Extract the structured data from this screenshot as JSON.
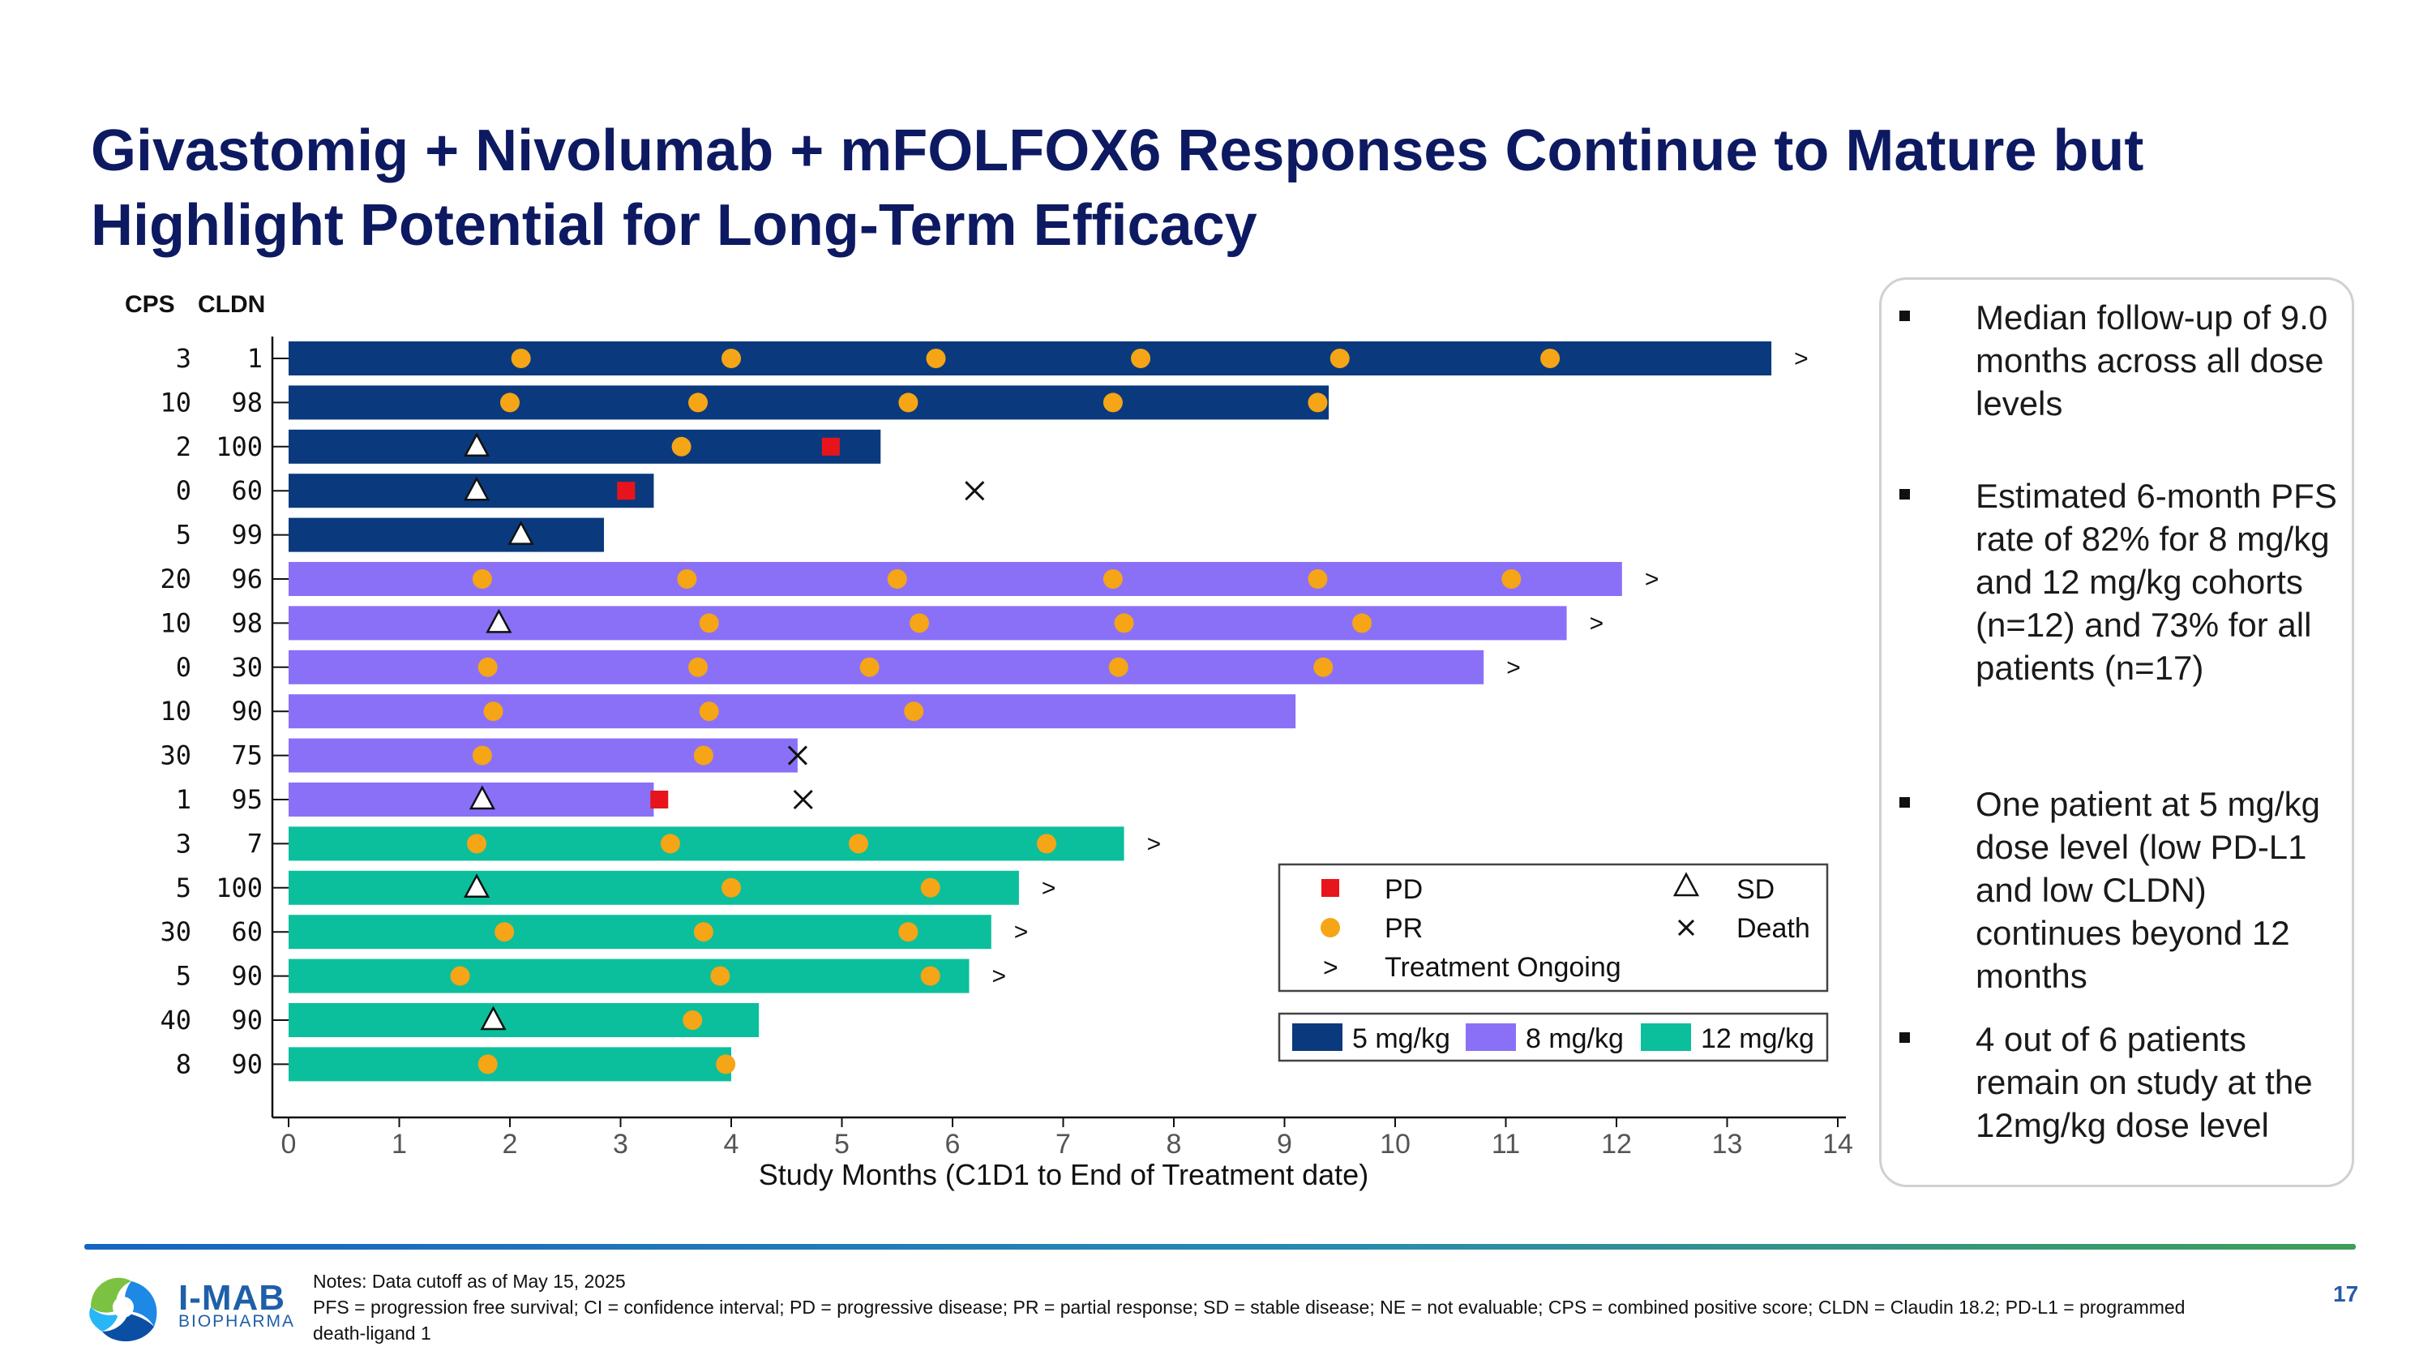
{
  "title": {
    "line1": "Givastomig + Nivolumab + mFOLFOX6 Responses Continue to Mature but",
    "line2": "Highlight Potential for Long-Term Efficacy"
  },
  "chart_data": {
    "type": "swimmer",
    "xlabel": "Study Months (C1D1 to End of Treatment date)",
    "xlim": [
      0,
      14
    ],
    "xticks": [
      0,
      1,
      2,
      3,
      4,
      5,
      6,
      7,
      8,
      9,
      10,
      11,
      12,
      13,
      14
    ],
    "column_headers": [
      "CPS",
      "CLDN"
    ],
    "colors": {
      "5 mg/kg": "#0a3a7d",
      "8 mg/kg": "#8a70f7",
      "12 mg/kg": "#0bbf9c",
      "PR": "#f5a516",
      "PD": "#e8141c",
      "marker": "#111111"
    },
    "legend_markers": [
      {
        "symbol": "■",
        "label": "PD"
      },
      {
        "symbol": "△",
        "label": "SD"
      },
      {
        "symbol": "●",
        "label": "PR"
      },
      {
        "symbol": "×",
        "label": "Death"
      },
      {
        "symbol": ">",
        "label": "Treatment Ongoing"
      }
    ],
    "legend_doses": [
      "5 mg/kg",
      "8 mg/kg",
      "12 mg/kg"
    ],
    "rows": [
      {
        "cps": "3",
        "cldn": "1",
        "dose": "5 mg/kg",
        "end": 13.4,
        "pr": [
          2.1,
          4.0,
          5.85,
          7.7,
          9.5,
          11.4
        ],
        "sd": [],
        "pd": [],
        "death": null,
        "ongoing": true
      },
      {
        "cps": "10",
        "cldn": "98",
        "dose": "5 mg/kg",
        "end": 9.4,
        "pr": [
          2.0,
          3.7,
          5.6,
          7.45,
          9.3
        ],
        "sd": [],
        "pd": [],
        "death": null,
        "ongoing": false
      },
      {
        "cps": "2",
        "cldn": "100",
        "dose": "5 mg/kg",
        "end": 5.35,
        "pr": [
          3.55
        ],
        "sd": [
          1.7
        ],
        "pd": [
          4.9
        ],
        "death": null,
        "ongoing": false
      },
      {
        "cps": "0",
        "cldn": "60",
        "dose": "5 mg/kg",
        "end": 3.3,
        "pr": [],
        "sd": [
          1.7
        ],
        "pd": [
          3.05
        ],
        "death": 6.2,
        "ongoing": false
      },
      {
        "cps": "5",
        "cldn": "99",
        "dose": "5 mg/kg",
        "end": 2.85,
        "pr": [],
        "sd": [
          2.1
        ],
        "pd": [],
        "death": null,
        "ongoing": false
      },
      {
        "cps": "20",
        "cldn": "96",
        "dose": "8 mg/kg",
        "end": 12.05,
        "pr": [
          1.75,
          3.6,
          5.5,
          7.45,
          9.3,
          11.05
        ],
        "sd": [],
        "pd": [],
        "death": null,
        "ongoing": true
      },
      {
        "cps": "10",
        "cldn": "98",
        "dose": "8 mg/kg",
        "end": 11.55,
        "pr": [
          3.8,
          5.7,
          7.55,
          9.7
        ],
        "sd": [
          1.9
        ],
        "pd": [],
        "death": null,
        "ongoing": true
      },
      {
        "cps": "0",
        "cldn": "30",
        "dose": "8 mg/kg",
        "end": 10.8,
        "pr": [
          1.8,
          3.7,
          5.25,
          7.5,
          9.35
        ],
        "sd": [],
        "pd": [],
        "death": null,
        "ongoing": true
      },
      {
        "cps": "10",
        "cldn": "90",
        "dose": "8 mg/kg",
        "end": 9.1,
        "pr": [
          1.85,
          3.8,
          5.65
        ],
        "sd": [],
        "pd": [],
        "death": null,
        "ongoing": false
      },
      {
        "cps": "30",
        "cldn": "75",
        "dose": "8 mg/kg",
        "end": 4.6,
        "pr": [
          1.75,
          3.75
        ],
        "sd": [],
        "pd": [],
        "death": 4.6,
        "ongoing": false
      },
      {
        "cps": "1",
        "cldn": "95",
        "dose": "8 mg/kg",
        "end": 3.3,
        "pr": [],
        "sd": [
          1.75
        ],
        "pd": [
          3.35
        ],
        "death": 4.65,
        "ongoing": false
      },
      {
        "cps": "3",
        "cldn": "7",
        "dose": "12 mg/kg",
        "end": 7.55,
        "pr": [
          1.7,
          3.45,
          5.15,
          6.85
        ],
        "sd": [],
        "pd": [],
        "death": null,
        "ongoing": true
      },
      {
        "cps": "5",
        "cldn": "100",
        "dose": "12 mg/kg",
        "end": 6.6,
        "pr": [
          4.0,
          5.8
        ],
        "sd": [
          1.7
        ],
        "pd": [],
        "death": null,
        "ongoing": true
      },
      {
        "cps": "30",
        "cldn": "60",
        "dose": "12 mg/kg",
        "end": 6.35,
        "pr": [
          1.95,
          3.75,
          5.6
        ],
        "sd": [],
        "pd": [],
        "death": null,
        "ongoing": true
      },
      {
        "cps": "5",
        "cldn": "90",
        "dose": "12 mg/kg",
        "end": 6.15,
        "pr": [
          1.55,
          3.9,
          5.8
        ],
        "sd": [],
        "pd": [],
        "death": null,
        "ongoing": true
      },
      {
        "cps": "40",
        "cldn": "90",
        "dose": "12 mg/kg",
        "end": 4.25,
        "pr": [
          3.65
        ],
        "sd": [
          1.85
        ],
        "pd": [],
        "death": null,
        "ongoing": false
      },
      {
        "cps": "8",
        "cldn": "90",
        "dose": "12 mg/kg",
        "end": 4.0,
        "pr": [
          1.8,
          3.95
        ],
        "sd": [],
        "pd": [],
        "death": null,
        "ongoing": false
      }
    ]
  },
  "sidebar": {
    "bullets": [
      "Median follow-up of 9.0 months across all dose levels",
      "Estimated 6-month PFS rate of 82% for 8 mg/kg and 12 mg/kg cohorts (n=12) and 73% for all patients (n=17)",
      "One patient at 5 mg/kg dose level (low PD-L1 and low CLDN) continues beyond 12 months",
      "4 out of 6 patients remain on study at the 12mg/kg dose level"
    ]
  },
  "footer": {
    "logo_name": "I-MAB",
    "logo_sub": "BIOPHARMA",
    "notes_line1": "Notes: Data cutoff as of May 15, 2025",
    "notes_line2": "PFS = progression free survival; CI = confidence interval; PD = progressive disease; PR = partial response; SD = stable disease; NE = not evaluable; CPS = combined positive score; CLDN = Claudin 18.2; PD-L1 = programmed death-ligand 1",
    "page_number": "17"
  }
}
